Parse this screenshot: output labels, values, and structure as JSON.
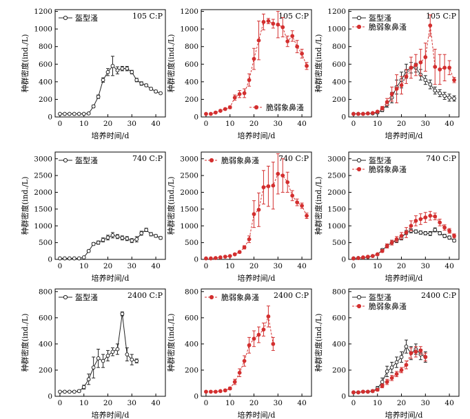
{
  "colors": {
    "A": "#222222",
    "B": "#d32f2f"
  },
  "series_names": {
    "A": "盔型溞",
    "B": "脆弱象鼻溞"
  },
  "x_label": "培养时间/d",
  "y_label": "种群密度(ind./L)",
  "chart_data": [
    {
      "type": "line",
      "title": "105 C:P",
      "legend_position": "top-left",
      "xlim": [
        -2,
        44
      ],
      "ylim": [
        0,
        1220
      ],
      "xticks": [
        0,
        10,
        20,
        30,
        40
      ],
      "yticks": [
        0,
        200,
        400,
        600,
        800,
        1000,
        1200
      ],
      "series": [
        {
          "key": "A",
          "name": "盔型溞",
          "marker": "open-circle",
          "line": "solid",
          "x": [
            0,
            2,
            4,
            6,
            8,
            10,
            12,
            14,
            16,
            18,
            20,
            22,
            24,
            26,
            28,
            30,
            32,
            34,
            36,
            38,
            40,
            42
          ],
          "y": [
            35,
            35,
            35,
            35,
            35,
            35,
            40,
            120,
            230,
            420,
            510,
            580,
            530,
            550,
            550,
            510,
            420,
            380,
            360,
            320,
            290,
            270
          ],
          "err": [
            5,
            5,
            5,
            5,
            5,
            5,
            8,
            15,
            20,
            25,
            40,
            110,
            40,
            25,
            25,
            20,
            20,
            20,
            15,
            15,
            15,
            10
          ]
        }
      ]
    },
    {
      "type": "line",
      "title": "105 C:P",
      "legend_position": "bottom-right",
      "xlim": [
        -2,
        44
      ],
      "ylim": [
        0,
        1220
      ],
      "xticks": [
        0,
        10,
        20,
        30,
        40
      ],
      "yticks": [
        0,
        200,
        400,
        600,
        800,
        1000,
        1200
      ],
      "series": [
        {
          "key": "B",
          "name": "脆弱象鼻溞",
          "marker": "filled-circle",
          "line": "dashed",
          "x": [
            0,
            2,
            4,
            6,
            8,
            10,
            12,
            14,
            16,
            18,
            20,
            22,
            24,
            26,
            28,
            30,
            32,
            34,
            36,
            38,
            40,
            42
          ],
          "y": [
            35,
            35,
            50,
            70,
            90,
            110,
            220,
            260,
            270,
            420,
            660,
            870,
            1080,
            1090,
            1060,
            1050,
            1020,
            860,
            920,
            800,
            720,
            580
          ],
          "err": [
            5,
            5,
            8,
            10,
            10,
            15,
            30,
            40,
            50,
            70,
            120,
            220,
            90,
            30,
            50,
            150,
            110,
            60,
            60,
            70,
            50,
            40
          ]
        }
      ]
    },
    {
      "type": "line",
      "title": "105 C:P",
      "legend_position": "top-left",
      "xlim": [
        -2,
        44
      ],
      "ylim": [
        0,
        1220
      ],
      "xticks": [
        0,
        10,
        20,
        30,
        40
      ],
      "yticks": [
        0,
        200,
        400,
        600,
        800,
        1000,
        1200
      ],
      "series": [
        {
          "key": "A",
          "name": "盔型溞",
          "marker": "open-circle",
          "line": "solid",
          "x": [
            0,
            2,
            4,
            6,
            8,
            10,
            12,
            14,
            16,
            18,
            20,
            22,
            24,
            26,
            28,
            30,
            32,
            34,
            36,
            38,
            40,
            42
          ],
          "y": [
            35,
            35,
            35,
            40,
            40,
            50,
            80,
            140,
            220,
            340,
            420,
            520,
            560,
            560,
            480,
            420,
            370,
            300,
            270,
            240,
            220,
            210
          ],
          "err": [
            5,
            5,
            5,
            5,
            5,
            10,
            20,
            30,
            60,
            80,
            90,
            80,
            60,
            50,
            60,
            50,
            50,
            40,
            40,
            40,
            40,
            30
          ]
        },
        {
          "key": "B",
          "name": "脆弱象鼻溞",
          "marker": "filled-circle",
          "line": "dashed",
          "x": [
            0,
            2,
            4,
            6,
            8,
            10,
            12,
            14,
            16,
            18,
            20,
            22,
            24,
            26,
            28,
            30,
            32,
            34,
            36,
            38,
            40,
            42
          ],
          "y": [
            35,
            35,
            35,
            40,
            45,
            60,
            100,
            170,
            260,
            320,
            360,
            460,
            560,
            590,
            620,
            680,
            1040,
            570,
            540,
            560,
            560,
            420
          ],
          "err": [
            5,
            5,
            5,
            5,
            5,
            10,
            20,
            40,
            80,
            160,
            100,
            80,
            120,
            120,
            150,
            160,
            120,
            200,
            170,
            150,
            80,
            30
          ]
        }
      ]
    },
    {
      "type": "line",
      "title": "740 C:P",
      "legend_position": "top-left",
      "xlim": [
        -2,
        44
      ],
      "ylim": [
        0,
        3200
      ],
      "xticks": [
        0,
        10,
        20,
        30,
        40
      ],
      "yticks": [
        0,
        500,
        1000,
        1500,
        2000,
        2500,
        3000
      ],
      "series": [
        {
          "key": "A",
          "name": "盔型溞",
          "marker": "open-circle",
          "line": "solid",
          "x": [
            0,
            2,
            4,
            6,
            8,
            10,
            12,
            14,
            16,
            18,
            20,
            22,
            24,
            26,
            28,
            30,
            32,
            34,
            36,
            38,
            40,
            42
          ],
          "y": [
            30,
            30,
            30,
            30,
            30,
            60,
            250,
            460,
            500,
            580,
            650,
            720,
            680,
            640,
            620,
            560,
            600,
            780,
            880,
            750,
            700,
            640
          ],
          "err": [
            5,
            5,
            5,
            5,
            5,
            10,
            30,
            40,
            50,
            60,
            70,
            80,
            60,
            60,
            60,
            60,
            80,
            60,
            50,
            50,
            40,
            40
          ]
        }
      ]
    },
    {
      "type": "line",
      "title": "740 C:P",
      "legend_position": "top-left",
      "xlim": [
        -2,
        44
      ],
      "ylim": [
        0,
        3200
      ],
      "xticks": [
        0,
        10,
        20,
        30,
        40
      ],
      "yticks": [
        0,
        500,
        1000,
        1500,
        2000,
        2500,
        3000
      ],
      "series": [
        {
          "key": "B",
          "name": "脆弱象鼻溞",
          "marker": "filled-circle",
          "line": "dashed",
          "x": [
            0,
            2,
            4,
            6,
            8,
            10,
            12,
            14,
            16,
            18,
            20,
            22,
            24,
            26,
            28,
            30,
            32,
            34,
            36,
            38,
            40,
            42
          ],
          "y": [
            30,
            30,
            40,
            60,
            80,
            100,
            150,
            220,
            360,
            600,
            1350,
            1480,
            2150,
            2180,
            2200,
            2550,
            2500,
            2300,
            1900,
            1700,
            1600,
            1300
          ],
          "err": [
            5,
            5,
            5,
            5,
            10,
            10,
            20,
            30,
            50,
            100,
            400,
            500,
            500,
            600,
            700,
            600,
            500,
            300,
            150,
            100,
            80,
            80
          ]
        }
      ]
    },
    {
      "type": "line",
      "title": "740 C:P",
      "legend_position": "top-left",
      "xlim": [
        -2,
        44
      ],
      "ylim": [
        0,
        3200
      ],
      "xticks": [
        0,
        10,
        20,
        30,
        40
      ],
      "yticks": [
        0,
        500,
        1000,
        1500,
        2000,
        2500,
        3000
      ],
      "series": [
        {
          "key": "A",
          "name": "盔型溞",
          "marker": "open-circle",
          "line": "solid",
          "x": [
            0,
            2,
            4,
            6,
            8,
            10,
            12,
            14,
            16,
            18,
            20,
            22,
            24,
            26,
            28,
            30,
            32,
            34,
            36,
            38,
            40,
            42
          ],
          "y": [
            30,
            40,
            50,
            70,
            100,
            150,
            280,
            400,
            500,
            560,
            640,
            800,
            850,
            830,
            800,
            780,
            770,
            880,
            780,
            700,
            650,
            560
          ],
          "err": [
            5,
            5,
            10,
            10,
            15,
            20,
            40,
            60,
            70,
            60,
            60,
            60,
            60,
            50,
            50,
            50,
            60,
            60,
            50,
            50,
            50,
            40
          ]
        },
        {
          "key": "B",
          "name": "脆弱象鼻溞",
          "marker": "filled-circle",
          "line": "dashed",
          "x": [
            0,
            2,
            4,
            6,
            8,
            10,
            12,
            14,
            16,
            18,
            20,
            22,
            24,
            26,
            28,
            30,
            32,
            34,
            36,
            38,
            40,
            42
          ],
          "y": [
            30,
            40,
            60,
            80,
            100,
            150,
            250,
            400,
            500,
            600,
            700,
            800,
            1000,
            1150,
            1200,
            1250,
            1300,
            1280,
            1100,
            950,
            850,
            700
          ],
          "err": [
            5,
            5,
            10,
            10,
            15,
            20,
            40,
            60,
            70,
            80,
            100,
            150,
            150,
            150,
            160,
            150,
            130,
            100,
            100,
            80,
            70,
            60
          ]
        }
      ]
    },
    {
      "type": "line",
      "title": "2400 C:P",
      "legend_position": "top-left",
      "xlim": [
        -2,
        44
      ],
      "ylim": [
        0,
        820
      ],
      "xticks": [
        0,
        10,
        20,
        30,
        40
      ],
      "yticks": [
        0,
        200,
        400,
        600,
        800
      ],
      "series": [
        {
          "key": "A",
          "name": "盔型溞",
          "marker": "open-circle",
          "line": "solid",
          "x": [
            0,
            2,
            4,
            6,
            8,
            10,
            12,
            14,
            16,
            18,
            20,
            22,
            24,
            26,
            28,
            30,
            32
          ],
          "y": [
            35,
            35,
            35,
            35,
            40,
            70,
            130,
            220,
            290,
            270,
            310,
            340,
            360,
            630,
            320,
            280,
            270
          ],
          "err": [
            5,
            5,
            5,
            5,
            8,
            15,
            40,
            80,
            70,
            50,
            40,
            30,
            40,
            15,
            50,
            40,
            15
          ]
        }
      ]
    },
    {
      "type": "line",
      "title": "2400 C:P",
      "legend_position": "top-left",
      "xlim": [
        -2,
        44
      ],
      "ylim": [
        0,
        820
      ],
      "xticks": [
        0,
        10,
        20,
        30,
        40
      ],
      "yticks": [
        0,
        200,
        400,
        600,
        800
      ],
      "series": [
        {
          "key": "B",
          "name": "脆弱象鼻溞",
          "marker": "filled-circle",
          "line": "dashed",
          "x": [
            0,
            2,
            4,
            6,
            8,
            10,
            12,
            14,
            16,
            18,
            20,
            22,
            24,
            26,
            28
          ],
          "y": [
            35,
            35,
            35,
            40,
            45,
            60,
            110,
            180,
            270,
            390,
            440,
            470,
            510,
            610,
            400
          ],
          "err": [
            5,
            5,
            5,
            5,
            8,
            10,
            20,
            30,
            40,
            60,
            60,
            60,
            50,
            80,
            50
          ]
        }
      ]
    },
    {
      "type": "line",
      "title": "2400 C:P",
      "legend_position": "top-left",
      "xlim": [
        -2,
        44
      ],
      "ylim": [
        0,
        820
      ],
      "xticks": [
        0,
        10,
        20,
        30,
        40
      ],
      "yticks": [
        0,
        200,
        400,
        600,
        800
      ],
      "series": [
        {
          "key": "A",
          "name": "盔型溞",
          "marker": "open-circle",
          "line": "solid",
          "x": [
            0,
            2,
            4,
            6,
            8,
            10,
            12,
            14,
            16,
            18,
            20,
            22,
            24,
            26,
            28,
            30
          ],
          "y": [
            30,
            30,
            35,
            35,
            40,
            60,
            110,
            190,
            220,
            260,
            300,
            380,
            330,
            360,
            320,
            300
          ],
          "err": [
            5,
            5,
            5,
            5,
            8,
            15,
            30,
            40,
            40,
            40,
            40,
            50,
            50,
            40,
            40,
            40
          ]
        },
        {
          "key": "B",
          "name": "脆弱象鼻溞",
          "marker": "filled-circle",
          "line": "dashed",
          "x": [
            0,
            2,
            4,
            6,
            8,
            10,
            12,
            14,
            16,
            18,
            20,
            22,
            24,
            26,
            28,
            30
          ],
          "y": [
            30,
            30,
            35,
            35,
            40,
            50,
            80,
            110,
            140,
            170,
            200,
            240,
            330,
            340,
            350,
            300
          ],
          "err": [
            5,
            5,
            5,
            5,
            8,
            10,
            15,
            20,
            20,
            20,
            20,
            30,
            40,
            40,
            30,
            30
          ]
        }
      ]
    }
  ]
}
